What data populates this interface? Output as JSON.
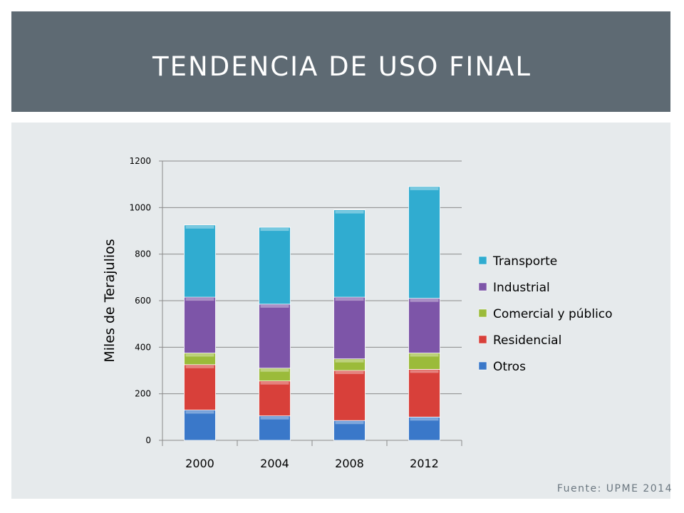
{
  "slide": {
    "title": "TENDENCIA DE USO FINAL",
    "source": "Fuente: UPME 2014"
  },
  "chart_data": {
    "type": "bar",
    "stacked": true,
    "categories": [
      "2000",
      "2004",
      "2008",
      "2012"
    ],
    "ylabel": "Miles de Terajulios",
    "xlabel": "",
    "ylim": [
      0,
      1200
    ],
    "yticks": [
      0,
      200,
      400,
      600,
      800,
      1000,
      1200
    ],
    "grid": true,
    "legend_position": "right",
    "series": [
      {
        "name": "Otros",
        "color": "#3a78c9",
        "values": [
          130,
          105,
          85,
          100
        ]
      },
      {
        "name": "Residencial",
        "color": "#d8403a",
        "values": [
          195,
          150,
          215,
          205
        ]
      },
      {
        "name": "Comercial y público",
        "color": "#9bbb3a",
        "values": [
          50,
          55,
          50,
          70
        ]
      },
      {
        "name": "Industrial",
        "color": "#7d55a8",
        "values": [
          240,
          275,
          265,
          235
        ]
      },
      {
        "name": "Transporte",
        "color": "#30acd0",
        "values": [
          310,
          330,
          375,
          480
        ]
      }
    ]
  }
}
